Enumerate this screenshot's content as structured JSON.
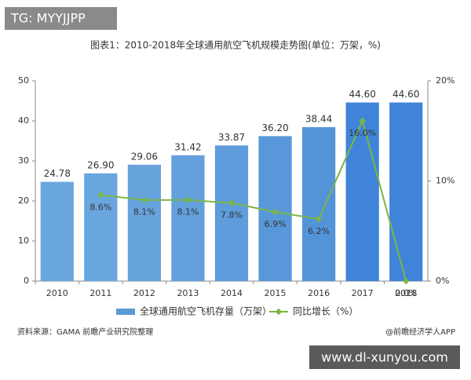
{
  "watermark_top": "TG: MYYJJPP",
  "watermark_bottom": "www.dl-xunyou.com",
  "chart_data": {
    "type": "bar-line",
    "title": "图表1：2010-2018年全球通用航空飞机规模走势图(单位：万架，%)",
    "categories": [
      "2010",
      "2011",
      "2012",
      "2013",
      "2014",
      "2015",
      "2016",
      "2017",
      "2018"
    ],
    "series": [
      {
        "name": "全球通用航空飞机存量（万架）",
        "type": "bar",
        "color": "#5b9bd5",
        "colors": [
          "#6aa6de",
          "#6aa6de",
          "#67a3dd",
          "#63a0dc",
          "#5e9cdb",
          "#5898da",
          "#5394d9",
          "#3f84d8",
          "#3f84d8"
        ],
        "values": [
          24.78,
          26.9,
          29.06,
          31.42,
          33.87,
          36.2,
          38.44,
          44.6,
          44.6
        ],
        "value_labels": [
          "24.78",
          "26.90",
          "29.06",
          "31.42",
          "33.87",
          "36.20",
          "38.44",
          "44.60",
          "44.60"
        ]
      },
      {
        "name": "同比增长（%）",
        "type": "line",
        "axis": "y2",
        "color": "#7ab648",
        "values": [
          null,
          8.6,
          8.1,
          8.1,
          7.8,
          6.9,
          6.2,
          16.0,
          0.0
        ],
        "value_labels": [
          null,
          "8.6%",
          "8.1%",
          "8.1%",
          "7.8%",
          "6.9%",
          "6.2%",
          "16.0%",
          "0.0%"
        ]
      }
    ],
    "ylim": [
      0,
      50
    ],
    "yticks": [
      0,
      10,
      20,
      30,
      40,
      50
    ],
    "y2lim": [
      0,
      20
    ],
    "y2ticks": [
      {
        "value": 0,
        "label": "0%"
      },
      {
        "value": 10,
        "label": "10%"
      },
      {
        "value": 20,
        "label": "20%"
      }
    ],
    "grid": false,
    "legend": "bottom",
    "source": "资料来源：GAMA 前瞻产业研究院整理",
    "credit": "@前瞻经济学人APP"
  }
}
